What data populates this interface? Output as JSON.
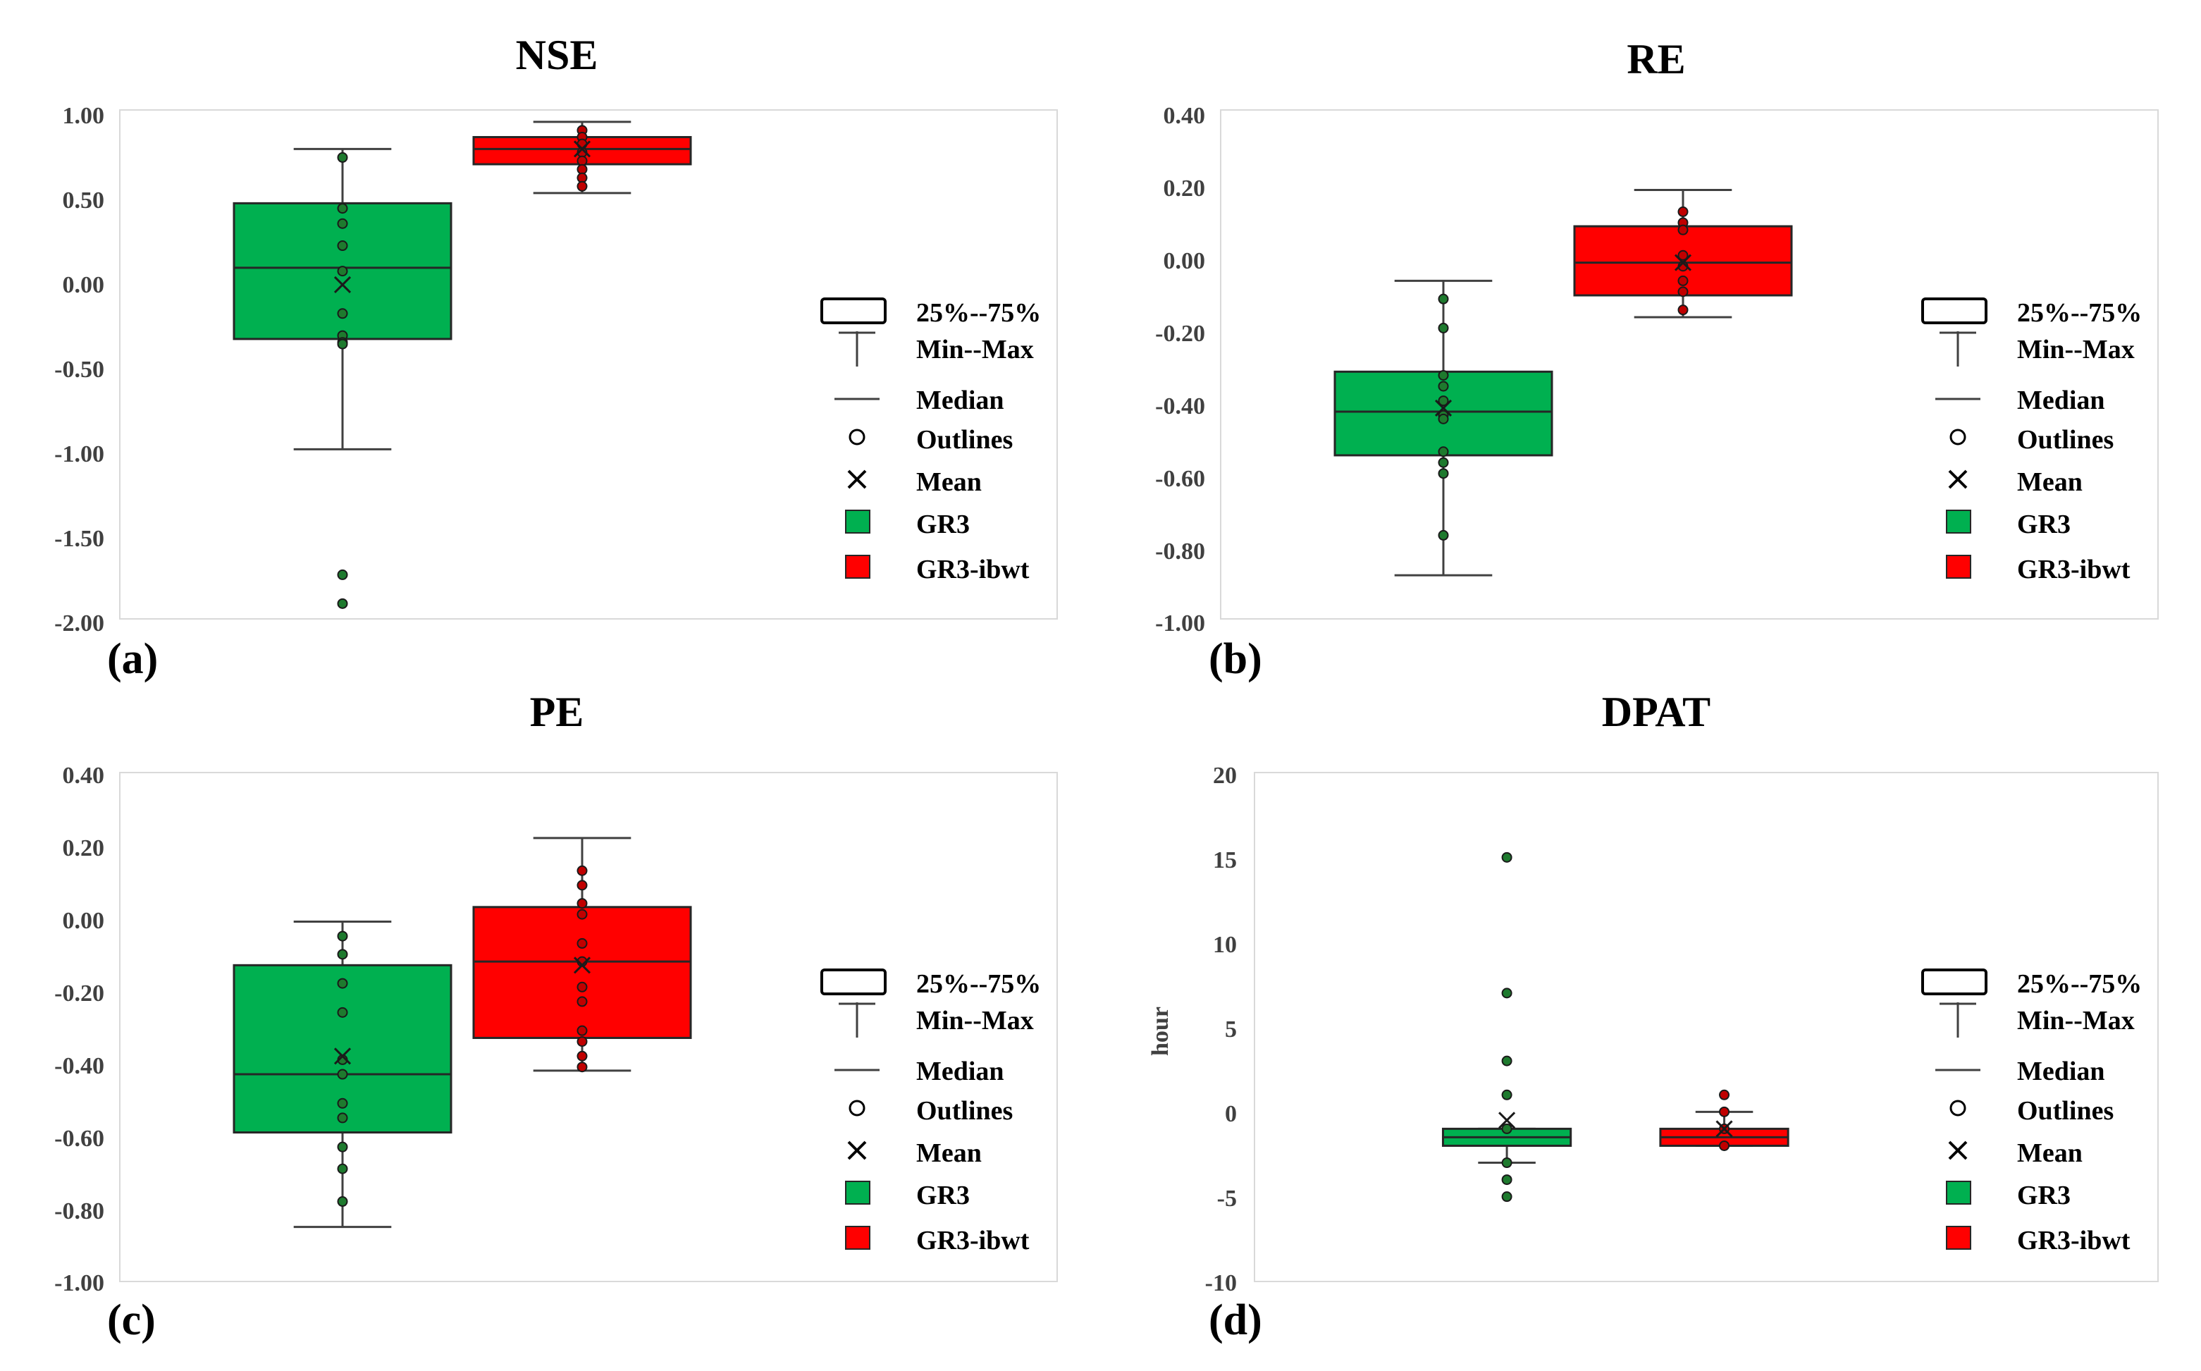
{
  "legend": {
    "items": [
      {
        "key": "box",
        "label": "25%--75%"
      },
      {
        "key": "whisker",
        "label": "Min--Max"
      },
      {
        "key": "median",
        "label": "Median"
      },
      {
        "key": "outlier",
        "label": "Outlines"
      },
      {
        "key": "mean",
        "label": "Mean"
      },
      {
        "key": "gr3",
        "label": "GR3"
      },
      {
        "key": "gr3ibwt",
        "label": "GR3-ibwt"
      }
    ]
  },
  "colors": {
    "gr3": "#00b050",
    "gr3ibwt": "#ff0000",
    "gr3_dot": "#1e7a2e",
    "gr3ibwt_dot": "#c00000"
  },
  "chart_data": [
    {
      "type": "box",
      "panel_label": "(a)",
      "title": "NSE",
      "ylabel": "",
      "ylim": [
        -2.0,
        1.0
      ],
      "yticks": [
        "1.00",
        "0.50",
        "0.00",
        "-0.50",
        "-1.00",
        "-1.50",
        "-2.00"
      ],
      "ytick_values": [
        1.0,
        0.5,
        0.0,
        -0.5,
        -1.0,
        -1.5,
        -2.0
      ],
      "series": [
        {
          "name": "GR3",
          "min": -1.0,
          "q1": -0.35,
          "median": 0.07,
          "q3": 0.45,
          "max": 0.77,
          "mean": -0.03,
          "points": [
            0.72,
            0.42,
            0.33,
            0.2,
            0.05,
            -0.2,
            -0.33,
            -0.37,
            -0.38,
            -1.74,
            -1.91
          ]
        },
        {
          "name": "GR3-ibwt",
          "min": 0.51,
          "q1": 0.68,
          "median": 0.77,
          "q3": 0.84,
          "max": 0.93,
          "mean": 0.77,
          "points": [
            0.88,
            0.84,
            0.8,
            0.75,
            0.7,
            0.65,
            0.6,
            0.55
          ]
        }
      ]
    },
    {
      "type": "box",
      "panel_label": "(b)",
      "title": "RE",
      "ylabel": "",
      "ylim": [
        -1.0,
        0.4
      ],
      "yticks": [
        "0.40",
        "0.20",
        "0.00",
        "-0.20",
        "-0.40",
        "-0.60",
        "-0.80",
        "-1.00"
      ],
      "ytick_values": [
        0.4,
        0.2,
        0.0,
        -0.2,
        -0.4,
        -0.6,
        -0.8,
        -1.0
      ],
      "series": [
        {
          "name": "GR3",
          "min": -0.88,
          "q1": -0.55,
          "median": -0.43,
          "q3": -0.32,
          "max": -0.07,
          "mean": -0.42,
          "points": [
            -0.12,
            -0.2,
            -0.33,
            -0.36,
            -0.4,
            -0.44,
            -0.45,
            -0.54,
            -0.57,
            -0.6,
            -0.77
          ]
        },
        {
          "name": "GR3-ibwt",
          "min": -0.17,
          "q1": -0.11,
          "median": -0.02,
          "q3": 0.08,
          "max": 0.18,
          "mean": -0.02,
          "points": [
            0.12,
            0.09,
            0.07,
            0.0,
            -0.03,
            -0.07,
            -0.1,
            -0.15
          ]
        }
      ]
    },
    {
      "type": "box",
      "panel_label": "(c)",
      "title": "PE",
      "ylabel": "",
      "ylim": [
        -1.0,
        0.4
      ],
      "yticks": [
        "0.40",
        "0.20",
        "0.00",
        "-0.20",
        "-0.40",
        "-0.60",
        "-0.80",
        "-1.00"
      ],
      "ytick_values": [
        0.4,
        0.2,
        0.0,
        -0.2,
        -0.4,
        -0.6,
        -0.8,
        -1.0
      ],
      "series": [
        {
          "name": "GR3",
          "min": -0.85,
          "q1": -0.59,
          "median": -0.43,
          "q3": -0.13,
          "max": -0.01,
          "mean": -0.38,
          "points": [
            -0.05,
            -0.1,
            -0.18,
            -0.26,
            -0.39,
            -0.43,
            -0.51,
            -0.55,
            -0.63,
            -0.69,
            -0.78
          ]
        },
        {
          "name": "GR3-ibwt",
          "min": -0.42,
          "q1": -0.33,
          "median": -0.12,
          "q3": 0.03,
          "max": 0.22,
          "mean": -0.13,
          "points": [
            0.13,
            0.09,
            0.04,
            0.01,
            -0.07,
            -0.12,
            -0.19,
            -0.23,
            -0.31,
            -0.34,
            -0.38,
            -0.41
          ]
        }
      ]
    },
    {
      "type": "box",
      "panel_label": "(d)",
      "title": "DPAT",
      "ylabel": "hour",
      "ylim": [
        -10,
        20
      ],
      "yticks": [
        "20",
        "15",
        "10",
        "5",
        "0",
        "-5",
        "-10"
      ],
      "ytick_values": [
        20,
        15,
        10,
        5,
        0,
        -5,
        -10
      ],
      "series": [
        {
          "name": "GR3",
          "min": -3,
          "q1": -2,
          "median": -1.5,
          "q3": -1,
          "max": -1,
          "mean": -0.5,
          "points": [
            15,
            7,
            3,
            1,
            -1,
            -3,
            -4,
            -5
          ]
        },
        {
          "name": "GR3-ibwt",
          "min": -2,
          "q1": -2,
          "median": -1.5,
          "q3": -1,
          "max": 0,
          "mean": -1,
          "points": [
            1,
            0,
            -1,
            -2
          ]
        }
      ]
    }
  ]
}
